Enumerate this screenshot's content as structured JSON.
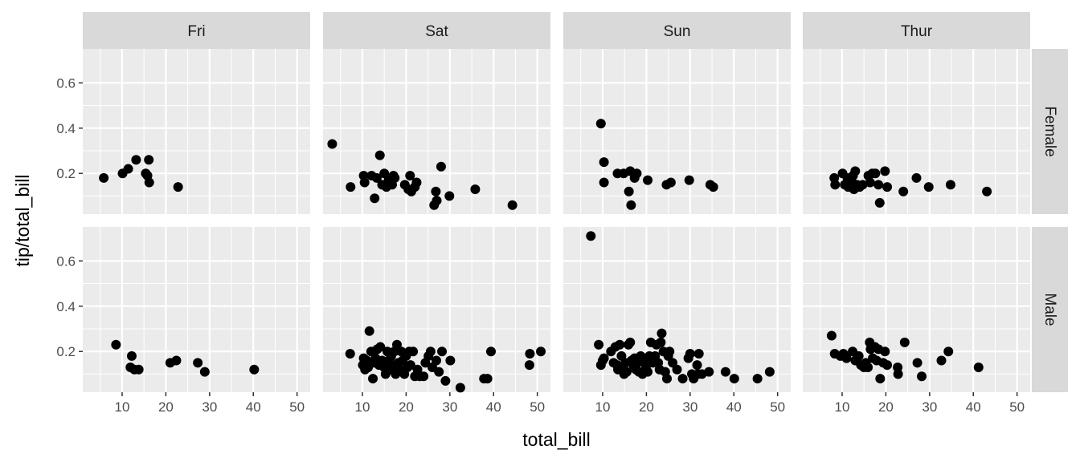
{
  "chart_data": {
    "type": "scatter",
    "title": "",
    "xlabel": "total_bill",
    "ylabel": "tip/total_bill",
    "xlim": [
      1,
      53
    ],
    "ylim": [
      0.02,
      0.75
    ],
    "x_ticks": [
      10,
      20,
      30,
      40,
      50
    ],
    "y_ticks": [
      0.2,
      0.4,
      0.6
    ],
    "x_tick_labels": [
      "10",
      "20",
      "30",
      "40",
      "50"
    ],
    "y_tick_labels": [
      "0.2",
      "0.4",
      "0.6"
    ],
    "grid": true,
    "col_facets": [
      "Fri",
      "Sat",
      "Sun",
      "Thur"
    ],
    "row_facets": [
      "Female",
      "Male"
    ],
    "panels": [
      {
        "row": "Female",
        "col": "Fri",
        "points": [
          [
            5.8,
            0.18
          ],
          [
            10.1,
            0.2
          ],
          [
            11.4,
            0.22
          ],
          [
            13.2,
            0.26
          ],
          [
            15.4,
            0.2
          ],
          [
            16.1,
            0.26
          ],
          [
            16.2,
            0.16
          ],
          [
            15.8,
            0.19
          ],
          [
            22.8,
            0.14
          ]
        ]
      },
      {
        "row": "Female",
        "col": "Sat",
        "points": [
          [
            3.1,
            0.33
          ],
          [
            7.3,
            0.14
          ],
          [
            10.3,
            0.19
          ],
          [
            10.5,
            0.16
          ],
          [
            12.1,
            0.19
          ],
          [
            12.8,
            0.09
          ],
          [
            13.3,
            0.18
          ],
          [
            14.0,
            0.28
          ],
          [
            14.5,
            0.15
          ],
          [
            15.0,
            0.2
          ],
          [
            15.5,
            0.14
          ],
          [
            16.0,
            0.17
          ],
          [
            16.8,
            0.15
          ],
          [
            17.1,
            0.19
          ],
          [
            17.4,
            0.18
          ],
          [
            19.7,
            0.15
          ],
          [
            20.5,
            0.13
          ],
          [
            20.9,
            0.19
          ],
          [
            21.2,
            0.12
          ],
          [
            22.0,
            0.14
          ],
          [
            22.4,
            0.16
          ],
          [
            26.4,
            0.06
          ],
          [
            26.8,
            0.12
          ],
          [
            27.0,
            0.08
          ],
          [
            28.0,
            0.23
          ],
          [
            29.9,
            0.1
          ],
          [
            35.8,
            0.13
          ],
          [
            44.3,
            0.06
          ]
        ]
      },
      {
        "row": "Female",
        "col": "Sun",
        "points": [
          [
            9.6,
            0.42
          ],
          [
            10.3,
            0.25
          ],
          [
            10.3,
            0.16
          ],
          [
            13.4,
            0.2
          ],
          [
            14.8,
            0.2
          ],
          [
            16.0,
            0.12
          ],
          [
            16.3,
            0.21
          ],
          [
            16.5,
            0.06
          ],
          [
            17.3,
            0.18
          ],
          [
            17.8,
            0.2
          ],
          [
            20.3,
            0.17
          ],
          [
            24.6,
            0.15
          ],
          [
            25.6,
            0.16
          ],
          [
            29.8,
            0.17
          ],
          [
            34.6,
            0.15
          ],
          [
            35.3,
            0.14
          ]
        ]
      },
      {
        "row": "Female",
        "col": "Thur",
        "points": [
          [
            8.2,
            0.18
          ],
          [
            8.4,
            0.15
          ],
          [
            10.1,
            0.2
          ],
          [
            10.6,
            0.15
          ],
          [
            11.2,
            0.18
          ],
          [
            11.4,
            0.14
          ],
          [
            12.1,
            0.17
          ],
          [
            12.5,
            0.19
          ],
          [
            12.7,
            0.13
          ],
          [
            13.0,
            0.21
          ],
          [
            13.4,
            0.15
          ],
          [
            14.0,
            0.14
          ],
          [
            14.7,
            0.15
          ],
          [
            16.0,
            0.19
          ],
          [
            16.4,
            0.16
          ],
          [
            16.9,
            0.2
          ],
          [
            17.6,
            0.2
          ],
          [
            18.3,
            0.15
          ],
          [
            18.6,
            0.07
          ],
          [
            19.8,
            0.21
          ],
          [
            20.3,
            0.14
          ],
          [
            24.0,
            0.12
          ],
          [
            27.0,
            0.18
          ],
          [
            29.8,
            0.14
          ],
          [
            34.8,
            0.15
          ],
          [
            43.1,
            0.12
          ]
        ]
      },
      {
        "row": "Male",
        "col": "Fri",
        "points": [
          [
            8.6,
            0.23
          ],
          [
            11.9,
            0.13
          ],
          [
            12.2,
            0.18
          ],
          [
            12.8,
            0.12
          ],
          [
            13.8,
            0.12
          ],
          [
            21.0,
            0.15
          ],
          [
            22.4,
            0.16
          ],
          [
            27.3,
            0.15
          ],
          [
            28.9,
            0.11
          ],
          [
            40.2,
            0.12
          ]
        ]
      },
      {
        "row": "Male",
        "col": "Sat",
        "points": [
          [
            7.2,
            0.19
          ],
          [
            10.1,
            0.14
          ],
          [
            10.3,
            0.17
          ],
          [
            10.6,
            0.12
          ],
          [
            11.0,
            0.16
          ],
          [
            11.3,
            0.13
          ],
          [
            11.6,
            0.29
          ],
          [
            12.0,
            0.2
          ],
          [
            12.4,
            0.08
          ],
          [
            12.7,
            0.15
          ],
          [
            13.0,
            0.17
          ],
          [
            13.4,
            0.21
          ],
          [
            13.8,
            0.14
          ],
          [
            14.1,
            0.22
          ],
          [
            14.5,
            0.16
          ],
          [
            15.0,
            0.13
          ],
          [
            15.3,
            0.1
          ],
          [
            15.7,
            0.2
          ],
          [
            16.0,
            0.16
          ],
          [
            16.3,
            0.12
          ],
          [
            16.6,
            0.18
          ],
          [
            17.0,
            0.14
          ],
          [
            17.3,
            0.2
          ],
          [
            17.6,
            0.1
          ],
          [
            17.9,
            0.23
          ],
          [
            18.2,
            0.15
          ],
          [
            18.6,
            0.12
          ],
          [
            18.9,
            0.2
          ],
          [
            19.2,
            0.16
          ],
          [
            19.6,
            0.1
          ],
          [
            20.0,
            0.18
          ],
          [
            20.3,
            0.13
          ],
          [
            20.7,
            0.2
          ],
          [
            21.0,
            0.14
          ],
          [
            21.6,
            0.2
          ],
          [
            22.0,
            0.09
          ],
          [
            22.6,
            0.12
          ],
          [
            23.1,
            0.09
          ],
          [
            24.0,
            0.09
          ],
          [
            24.4,
            0.15
          ],
          [
            25.1,
            0.18
          ],
          [
            25.6,
            0.2
          ],
          [
            26.0,
            0.13
          ],
          [
            26.9,
            0.16
          ],
          [
            27.5,
            0.11
          ],
          [
            28.2,
            0.2
          ],
          [
            29.0,
            0.07
          ],
          [
            30.1,
            0.16
          ],
          [
            32.4,
            0.04
          ],
          [
            37.8,
            0.08
          ],
          [
            38.6,
            0.08
          ],
          [
            39.4,
            0.2
          ],
          [
            48.2,
            0.14
          ],
          [
            48.3,
            0.19
          ],
          [
            50.8,
            0.2
          ]
        ]
      },
      {
        "row": "Male",
        "col": "Sun",
        "points": [
          [
            7.3,
            0.71
          ],
          [
            9.1,
            0.23
          ],
          [
            9.6,
            0.14
          ],
          [
            10.0,
            0.16
          ],
          [
            10.3,
            0.17
          ],
          [
            11.9,
            0.2
          ],
          [
            12.5,
            0.15
          ],
          [
            12.9,
            0.22
          ],
          [
            13.3,
            0.14
          ],
          [
            13.5,
            0.12
          ],
          [
            13.9,
            0.23
          ],
          [
            14.3,
            0.18
          ],
          [
            14.6,
            0.12
          ],
          [
            14.9,
            0.1
          ],
          [
            15.2,
            0.15
          ],
          [
            15.5,
            0.11
          ],
          [
            15.9,
            0.23
          ],
          [
            16.3,
            0.24
          ],
          [
            16.6,
            0.16
          ],
          [
            17.0,
            0.14
          ],
          [
            17.3,
            0.17
          ],
          [
            17.6,
            0.12
          ],
          [
            18.0,
            0.15
          ],
          [
            18.3,
            0.11
          ],
          [
            18.7,
            0.18
          ],
          [
            19.1,
            0.1
          ],
          [
            19.5,
            0.16
          ],
          [
            19.9,
            0.13
          ],
          [
            20.3,
            0.11
          ],
          [
            20.7,
            0.18
          ],
          [
            21.0,
            0.24
          ],
          [
            21.5,
            0.15
          ],
          [
            22.0,
            0.18
          ],
          [
            22.3,
            0.23
          ],
          [
            22.7,
            0.15
          ],
          [
            23.0,
            0.12
          ],
          [
            23.3,
            0.24
          ],
          [
            23.5,
            0.28
          ],
          [
            23.9,
            0.2
          ],
          [
            24.3,
            0.11
          ],
          [
            24.7,
            0.08
          ],
          [
            25.0,
            0.18
          ],
          [
            25.3,
            0.2
          ],
          [
            26.0,
            0.15
          ],
          [
            27.0,
            0.12
          ],
          [
            28.3,
            0.08
          ],
          [
            29.6,
            0.17
          ],
          [
            30.0,
            0.19
          ],
          [
            30.4,
            0.1
          ],
          [
            30.8,
            0.08
          ],
          [
            31.6,
            0.14
          ],
          [
            31.8,
            0.1
          ],
          [
            32.0,
            0.19
          ],
          [
            32.7,
            0.1
          ],
          [
            34.3,
            0.11
          ],
          [
            38.1,
            0.11
          ],
          [
            40.1,
            0.08
          ],
          [
            45.4,
            0.08
          ],
          [
            48.2,
            0.11
          ]
        ]
      },
      {
        "row": "Male",
        "col": "Thur",
        "points": [
          [
            7.6,
            0.27
          ],
          [
            8.3,
            0.19
          ],
          [
            9.6,
            0.18
          ],
          [
            10.3,
            0.19
          ],
          [
            11.0,
            0.17
          ],
          [
            12.4,
            0.2
          ],
          [
            13.0,
            0.16
          ],
          [
            13.8,
            0.18
          ],
          [
            14.3,
            0.14
          ],
          [
            15.0,
            0.13
          ],
          [
            15.4,
            0.15
          ],
          [
            15.9,
            0.13
          ],
          [
            16.3,
            0.24
          ],
          [
            16.5,
            0.21
          ],
          [
            17.0,
            0.17
          ],
          [
            17.5,
            0.22
          ],
          [
            17.9,
            0.16
          ],
          [
            18.3,
            0.21
          ],
          [
            18.7,
            0.08
          ],
          [
            19.4,
            0.15
          ],
          [
            19.8,
            0.2
          ],
          [
            20.3,
            0.14
          ],
          [
            22.7,
            0.13
          ],
          [
            22.8,
            0.1
          ],
          [
            24.3,
            0.24
          ],
          [
            27.2,
            0.15
          ],
          [
            28.2,
            0.09
          ],
          [
            32.7,
            0.16
          ],
          [
            34.3,
            0.2
          ],
          [
            41.2,
            0.13
          ]
        ]
      }
    ]
  }
}
